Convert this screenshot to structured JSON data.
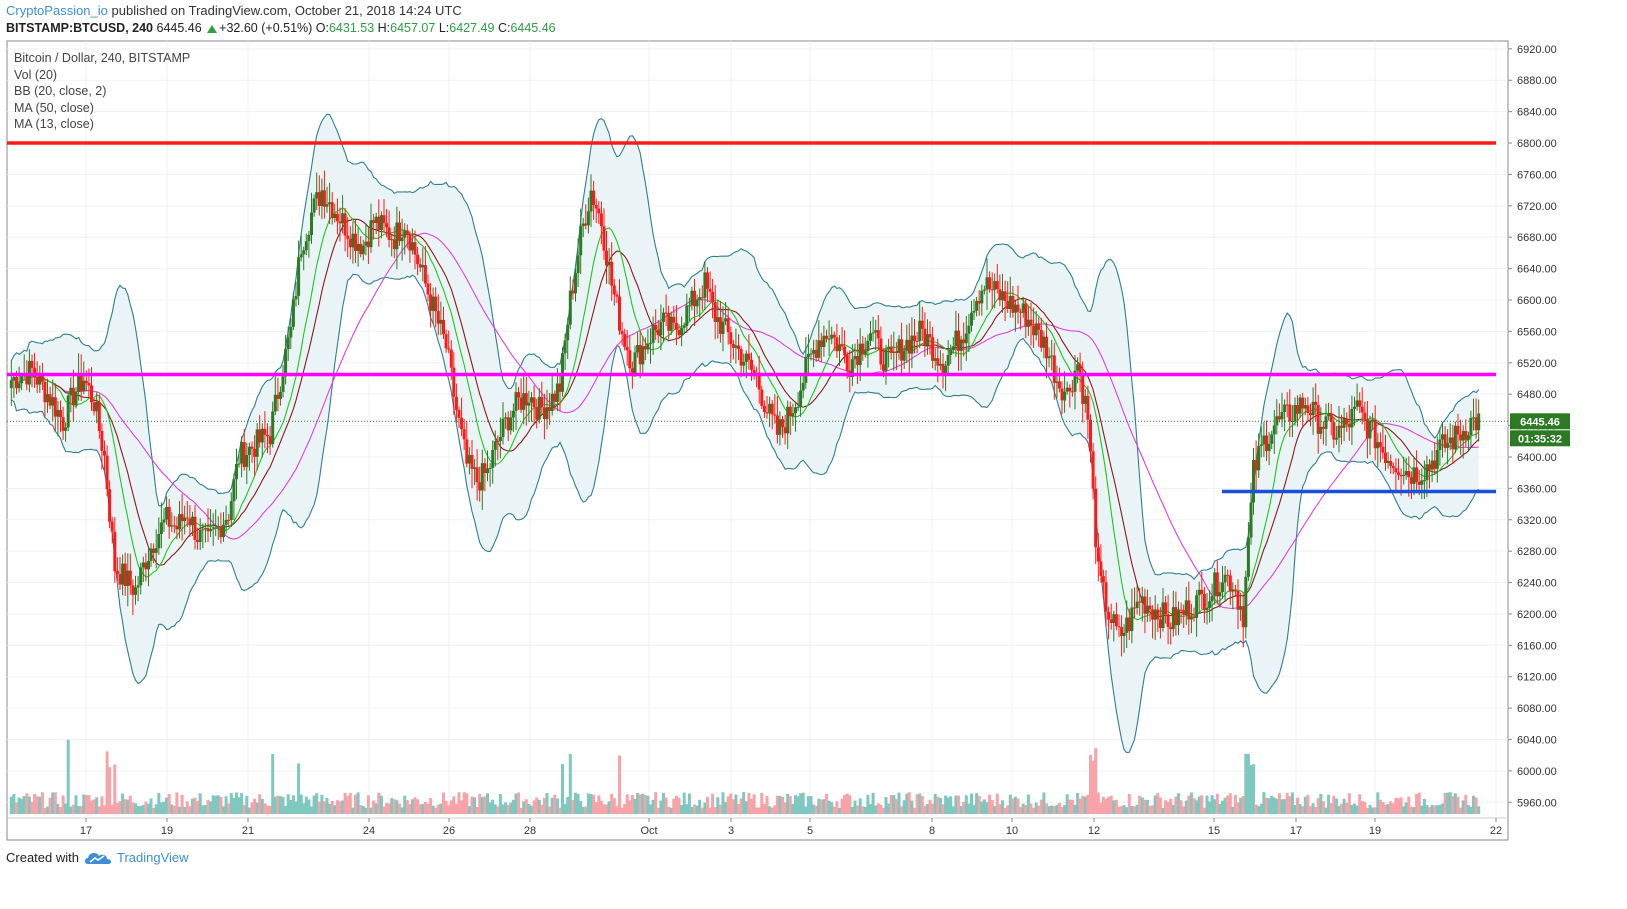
{
  "header": {
    "author": "CryptoPassion_io",
    "published_text": "published on TradingView.com, October 21, 2018 14:24 UTC"
  },
  "quote": {
    "symbol": "BITSTAMP:BTCUSD, 240",
    "last": "6445.46",
    "change": "+32.60 (+0.51%)",
    "o_label": "O:",
    "o": "6431.53",
    "h_label": "H:",
    "h": "6457.07",
    "l_label": "L:",
    "l": "6427.49",
    "c_label": "C:",
    "c": "6445.46"
  },
  "legend": {
    "title": "Bitcoin / Dollar, 240, BITSTAMP",
    "vol": "Vol (20)",
    "bb": "BB (20, close, 2)",
    "ma50": "MA (50, close)",
    "ma13": "MA (13, close)"
  },
  "footer": {
    "created_with": "Created with",
    "brand": "TradingView"
  },
  "colors": {
    "up": "#2d7a25",
    "down": "#ff1a1a",
    "vol_up": "#7ec8c0",
    "vol_down": "#f7a3a8",
    "bb": "#2f7f8e",
    "bb_fill": "#eaf4f6",
    "ma13": "#1ec81e",
    "ma50": "#e040e0",
    "ma20": "#8b1a1a",
    "resistance": "#ff1a1a",
    "pivot": "#ff00ff",
    "support": "#1a4fd8"
  },
  "chart_data": {
    "type": "candlestick",
    "symbol": "BITSTAMP:BTCUSD",
    "interval": "240",
    "ylim": [
      5940,
      6930
    ],
    "y_ticks": [
      "6920.00",
      "6880.00",
      "6840.00",
      "6800.00",
      "6760.00",
      "6720.00",
      "6680.00",
      "6640.00",
      "6600.00",
      "6560.00",
      "6520.00",
      "6480.00",
      "6440.00",
      "6400.00",
      "6360.00",
      "6320.00",
      "6280.00",
      "6240.00",
      "6200.00",
      "6160.00",
      "6120.00",
      "6080.00",
      "6040.00",
      "6000.00",
      "5960.00"
    ],
    "x_ticks": [
      "17",
      "19",
      "21",
      "24",
      "26",
      "28",
      "Oct",
      "3",
      "5",
      "8",
      "10",
      "12",
      "15",
      "17",
      "19",
      "22"
    ],
    "last_price_label": "6445.46",
    "countdown_label": "01:35:32",
    "last_price": 6445.46,
    "horizontal_lines": [
      {
        "name": "resistance",
        "price": 6800
      },
      {
        "name": "pivot",
        "price": 6505
      },
      {
        "name": "support",
        "price": 6356
      }
    ],
    "anchors": [
      6498,
      6505,
      6510,
      6490,
      6470,
      6445,
      6480,
      6500,
      6470,
      6400,
      6260,
      6245,
      6230,
      6270,
      6300,
      6320,
      6310,
      6330,
      6300,
      6290,
      6310,
      6330,
      6400,
      6410,
      6420,
      6430,
      6500,
      6560,
      6670,
      6710,
      6740,
      6720,
      6700,
      6680,
      6670,
      6700,
      6690,
      6680,
      6700,
      6660,
      6620,
      6580,
      6540,
      6460,
      6390,
      6370,
      6380,
      6420,
      6450,
      6470,
      6480,
      6460,
      6470,
      6490,
      6600,
      6680,
      6740,
      6700,
      6620,
      6560,
      6520,
      6540,
      6560,
      6570,
      6560,
      6580,
      6600,
      6620,
      6580,
      6560,
      6540,
      6520,
      6500,
      6460,
      6430,
      6450,
      6480,
      6520,
      6550,
      6560,
      6540,
      6520,
      6540,
      6560,
      6530,
      6520,
      6540,
      6550,
      6560,
      6540,
      6520,
      6540,
      6560,
      6600,
      6620,
      6610,
      6600,
      6590,
      6580,
      6560,
      6540,
      6500,
      6480,
      6520,
      6450,
      6250,
      6200,
      6170,
      6190,
      6220,
      6210,
      6200,
      6190,
      6200,
      6210,
      6220,
      6230,
      6250,
      6240,
      6200,
      6380,
      6420,
      6440,
      6450,
      6460,
      6470,
      6450,
      6440,
      6430,
      6440,
      6460,
      6440,
      6420,
      6400,
      6390,
      6380,
      6380,
      6390,
      6410,
      6420,
      6430,
      6445
    ]
  }
}
